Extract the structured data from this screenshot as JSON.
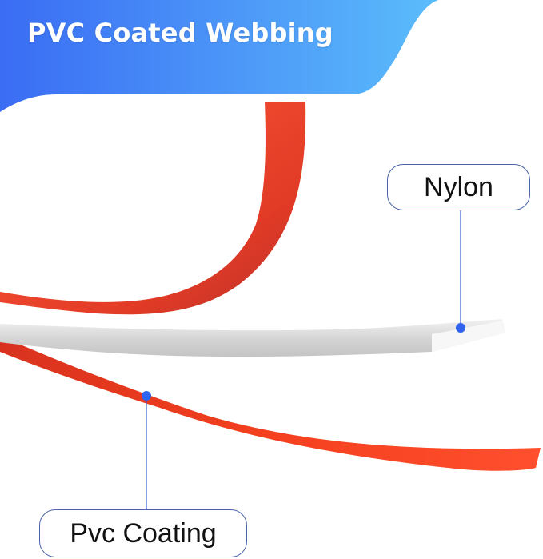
{
  "banner": {
    "title": "PVC Coated Webbing",
    "gradient_start": "#3a6cf4",
    "gradient_end": "#5bbcfb"
  },
  "labels": {
    "nylon": "Nylon",
    "pvc_coating": "Pvc Coating"
  },
  "colors": {
    "pvc": "#f24a2a",
    "nylon": "#e6e6e6",
    "callout_line": "#3d5bd0",
    "dot": "#2f63f0"
  }
}
